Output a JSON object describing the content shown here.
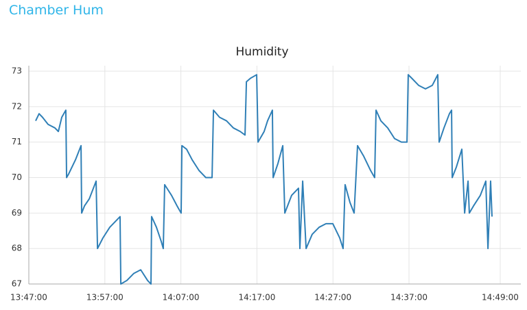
{
  "header": {
    "title": "Chamber Hum"
  },
  "chart_data": {
    "type": "line",
    "title": "Humidity",
    "color": "#2f7fb6",
    "grid": true,
    "x": [
      "13:47:54",
      "13:48:21",
      "13:48:48",
      "13:49:32",
      "13:50:26",
      "13:50:53",
      "13:51:20",
      "13:51:52",
      "13:51:58",
      "13:52:14",
      "13:53:08",
      "13:53:52",
      "13:53:57",
      "13:54:19",
      "13:54:57",
      "13:55:51",
      "13:56:02",
      "13:56:45",
      "13:57:39",
      "13:58:33",
      "13:59:00",
      "13:59:06",
      "13:59:54",
      "14:00:49",
      "14:01:43",
      "14:02:37",
      "14:03:04",
      "14:03:09",
      "14:03:47",
      "14:04:25",
      "14:04:41",
      "14:04:52",
      "14:05:46",
      "14:06:30",
      "14:07:02",
      "14:07:08",
      "14:07:45",
      "14:08:29",
      "14:09:23",
      "14:10:17",
      "14:11:06",
      "14:11:17",
      "14:12:05",
      "14:13:00",
      "14:13:54",
      "14:14:48",
      "14:15:26",
      "14:15:37",
      "14:16:09",
      "14:16:58",
      "14:17:09",
      "14:17:57",
      "14:18:24",
      "14:19:02",
      "14:19:08",
      "14:19:46",
      "14:20:24",
      "14:20:40",
      "14:21:34",
      "14:22:28",
      "14:22:39",
      "14:23:01",
      "14:23:28",
      "14:24:16",
      "14:25:11",
      "14:26:05",
      "14:26:59",
      "14:27:53",
      "14:28:20",
      "14:28:36",
      "14:29:14",
      "14:29:47",
      "14:30:14",
      "14:31:03",
      "14:31:57",
      "14:32:29",
      "14:32:40",
      "14:33:18",
      "14:34:12",
      "14:35:06",
      "14:36:00",
      "14:36:44",
      "14:36:54",
      "14:37:22",
      "14:38:16",
      "14:39:10",
      "14:40:04",
      "14:40:47",
      "14:40:58",
      "14:41:36",
      "14:42:19",
      "14:42:36",
      "14:42:41",
      "14:43:14",
      "14:43:57",
      "14:44:19",
      "14:44:46",
      "14:44:56",
      "14:45:29",
      "14:46:23",
      "14:47:06",
      "14:47:23",
      "14:47:44",
      "14:47:55"
    ],
    "values": [
      71.6,
      71.8,
      71.7,
      71.5,
      71.4,
      71.3,
      71.7,
      71.9,
      70.0,
      70.1,
      70.5,
      70.9,
      69.0,
      69.2,
      69.4,
      69.9,
      68.0,
      68.3,
      68.6,
      68.8,
      68.9,
      67.0,
      67.1,
      67.3,
      67.4,
      67.1,
      67.0,
      68.9,
      68.6,
      68.2,
      68.0,
      69.8,
      69.5,
      69.2,
      69.0,
      70.9,
      70.8,
      70.5,
      70.2,
      70.0,
      70.0,
      71.9,
      71.7,
      71.6,
      71.4,
      71.3,
      71.2,
      72.7,
      72.8,
      72.9,
      71.0,
      71.3,
      71.6,
      71.9,
      70.0,
      70.4,
      70.9,
      69.0,
      69.5,
      69.7,
      68.0,
      69.9,
      68.0,
      68.4,
      68.6,
      68.7,
      68.7,
      68.3,
      68.0,
      69.8,
      69.3,
      69.0,
      70.9,
      70.6,
      70.2,
      70.0,
      71.9,
      71.6,
      71.4,
      71.1,
      71.0,
      71.0,
      72.9,
      72.8,
      72.6,
      72.5,
      72.6,
      72.9,
      71.0,
      71.4,
      71.8,
      71.9,
      70.0,
      70.3,
      70.8,
      69.0,
      69.9,
      69.0,
      69.2,
      69.5,
      69.9,
      68.0,
      69.9,
      68.9
    ],
    "xlim": [
      "13:47:00",
      "14:49:00"
    ],
    "xticks": [
      "13:47:00",
      "13:57:00",
      "14:07:00",
      "14:17:00",
      "14:27:00",
      "14:37:00",
      "14:49:00"
    ],
    "ylim": [
      67,
      73
    ],
    "yticks": [
      67,
      68,
      69,
      70,
      71,
      72,
      73
    ]
  }
}
